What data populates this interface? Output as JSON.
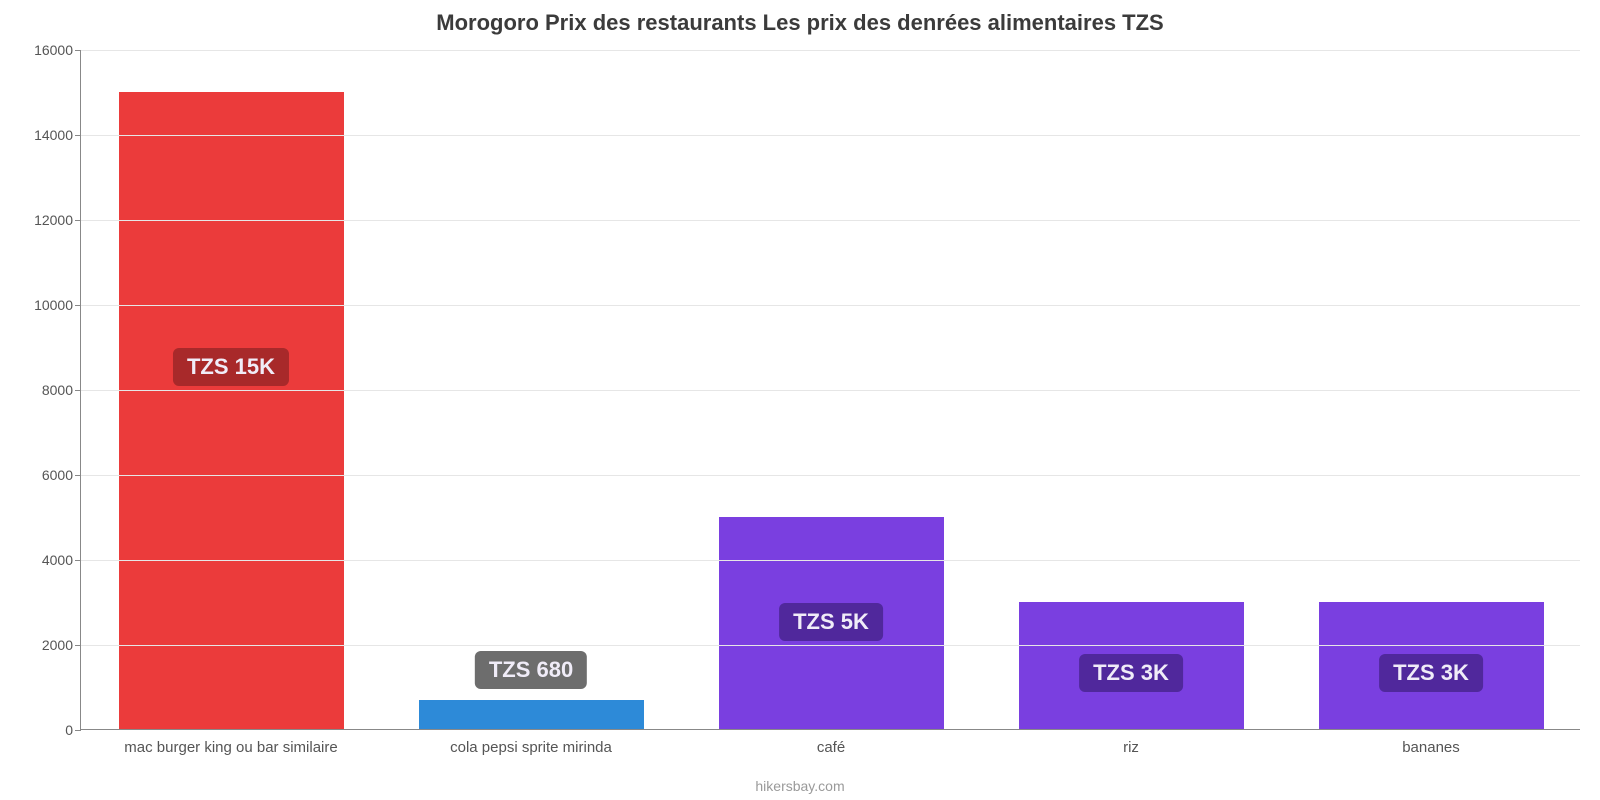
{
  "chart": {
    "type": "bar",
    "title": "Morogoro Prix des restaurants Les prix des denrées alimentaires TZS",
    "title_fontsize": 22,
    "title_color": "#3b3b3b",
    "background_color": "#ffffff",
    "grid_color": "#e6e6e6",
    "axis_color": "#888888",
    "tick_label_color": "#555555",
    "tick_label_fontsize": 14,
    "footer": "hikersbay.com",
    "footer_color": "#9a9a9a",
    "ylim": [
      0,
      16000
    ],
    "ytick_step": 2000,
    "yticks": [
      0,
      2000,
      4000,
      6000,
      8000,
      10000,
      12000,
      14000,
      16000
    ],
    "bar_width_ratio": 0.75,
    "categories": [
      "mac burger king ou bar similaire",
      "cola pepsi sprite mirinda",
      "café",
      "riz",
      "bananes"
    ],
    "values": [
      15000,
      680,
      5000,
      3000,
      3000
    ],
    "bar_colors": [
      "#eb3b3b",
      "#2d8ad8",
      "#7a3fe0",
      "#7a3fe0",
      "#7a3fe0"
    ],
    "bar_labels": [
      "TZS 15K",
      "TZS 680",
      "TZS 5K",
      "TZS 3K",
      "TZS 3K"
    ],
    "bar_label_fontsize": 22,
    "bar_label_text_color": "#f0ecf8",
    "bar_label_bg_colors": [
      "#a8292a",
      "#6d6d6d",
      "#50289c",
      "#50289c",
      "#50289c"
    ]
  }
}
